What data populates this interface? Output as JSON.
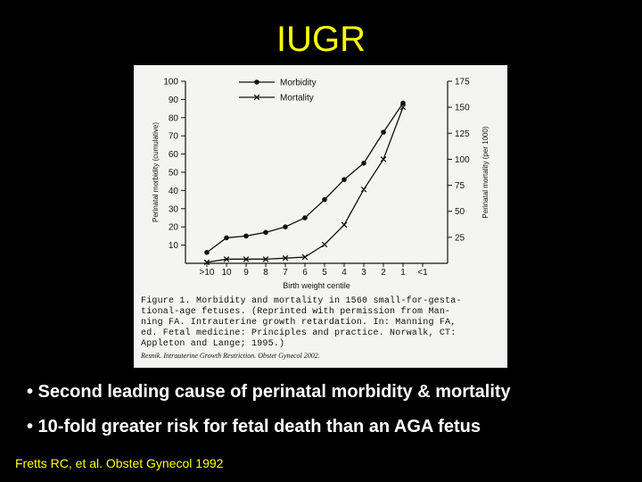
{
  "slide": {
    "title": "IUGR",
    "bullets": [
      "• Second leading cause of perinatal morbidity & mortality",
      "• 10-fold greater risk for fetal death than an AGA fetus"
    ],
    "citation": "Fretts RC, et al. Obstet Gynecol 1992"
  },
  "colors": {
    "background": "#000000",
    "title": "#FFFF00",
    "bullets": "#FFFFFF",
    "citation": "#FFFF00",
    "figure_paper": "#f4f4f2",
    "ink": "#111111"
  },
  "chart_data": {
    "type": "line",
    "xlabel": "Birth weight centile",
    "categories": [
      ">10",
      "10",
      "9",
      "8",
      "7",
      "6",
      "5",
      "4",
      "3",
      "2",
      "1",
      "<1"
    ],
    "ylabel_left": "Perinatal morbidity (cumulative)",
    "ylabel_right": "Perinatal mortality (per 1000)",
    "yticks_left": [
      10,
      20,
      30,
      40,
      50,
      60,
      70,
      80,
      90,
      100
    ],
    "yticks_right": [
      25,
      50,
      75,
      100,
      125,
      150,
      175
    ],
    "ylim_left": [
      0,
      100
    ],
    "ylim_right": [
      0,
      175
    ],
    "grid": false,
    "legend_position": "top-left",
    "series": [
      {
        "name": "Morbidity",
        "axis": "left",
        "marker": "dot",
        "x": [
          0,
          1,
          2,
          3,
          4,
          5,
          6,
          7,
          8,
          9,
          10
        ],
        "values": [
          6,
          14,
          15,
          17,
          20,
          25,
          35,
          46,
          55,
          72,
          88
        ]
      },
      {
        "name": "Mortality",
        "axis": "right",
        "marker": "x",
        "x": [
          0,
          1,
          2,
          3,
          4,
          5,
          6,
          7,
          8,
          9,
          10
        ],
        "values": [
          1,
          4,
          4,
          4,
          5,
          6,
          18,
          37,
          71,
          100,
          150
        ]
      }
    ],
    "caption": {
      "lines": [
        "Figure 1.  Morbidity and mortality in 1560 small-for-gesta-",
        "tional-age fetuses. (Reprinted with permission from Man-",
        "ning FA. Intrauterine growth retardation. In: Manning FA,",
        "ed. Fetal medicine: Principles and practice. Norwalk, CT:",
        "Appleton and Lange; 1995.)"
      ],
      "source": "Resnik. Intrauterine Growth Restriction. Obstet Gynecol 2002."
    }
  }
}
